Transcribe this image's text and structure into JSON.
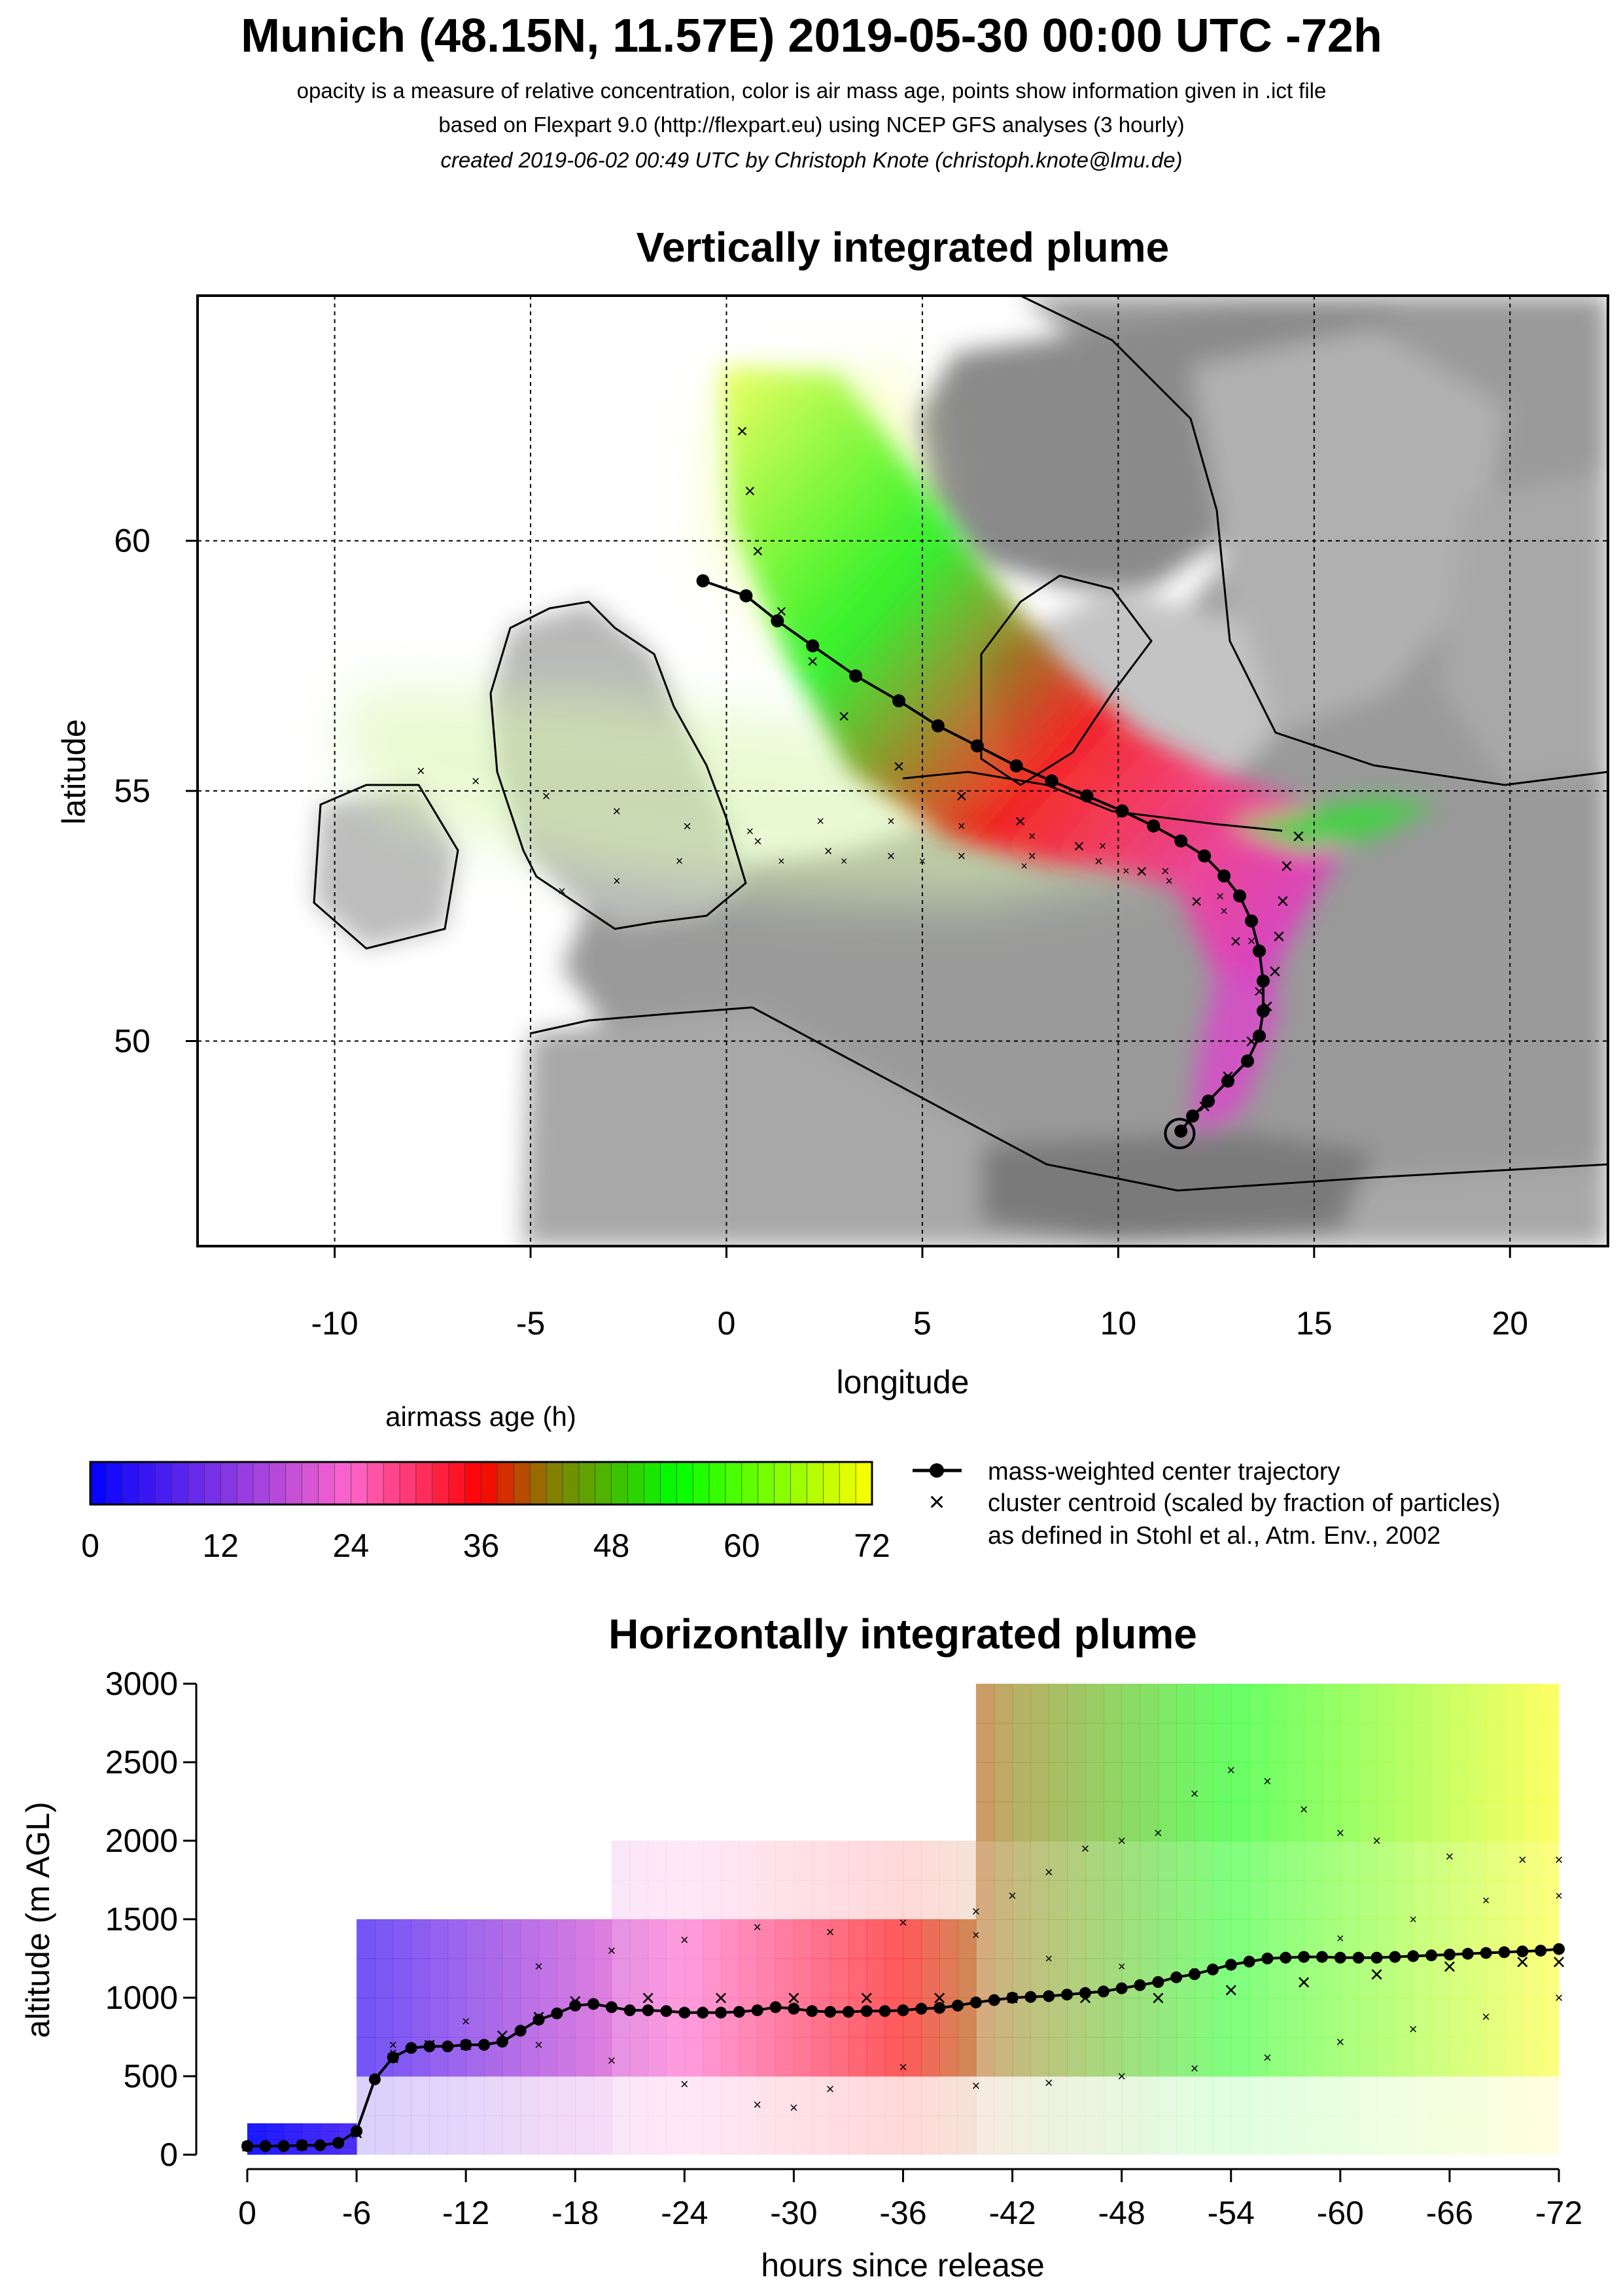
{
  "header": {
    "title": "Munich (48.15N, 11.57E) 2019-05-30 00:00 UTC -72h",
    "subtitle1": "opacity is a measure of relative concentration, color is air mass age, points show information given in .ict file",
    "subtitle2": "based on Flexpart 9.0 (http://flexpart.eu) using NCEP GFS analyses (3 hourly)",
    "subtitle3": "created 2019-06-02 00:49 UTC by Christoph Knote (christoph.knote@lmu.de)"
  },
  "map_panel": {
    "title": "Vertically integrated plume",
    "xlabel": "longitude",
    "ylabel": "latitude",
    "xticks": [
      "-10",
      "-5",
      "0",
      "5",
      "10",
      "15",
      "20"
    ],
    "yticks": [
      "60",
      "55",
      "50"
    ]
  },
  "legend": {
    "colorbar_title": "airmass age (h)",
    "colorbar_ticks": [
      "0",
      "12",
      "24",
      "36",
      "48",
      "60",
      "72"
    ],
    "line1": "mass-weighted center trajectory",
    "line2": "cluster centroid (scaled by fraction of particles)",
    "line3": "as defined in Stohl et al., Atm. Env., 2002"
  },
  "profile_panel": {
    "title": "Horizontally integrated plume",
    "xlabel": "hours since release",
    "ylabel": "altitude (m AGL)",
    "xticks": [
      "0",
      "-6",
      "-12",
      "-18",
      "-24",
      "-30",
      "-36",
      "-42",
      "-48",
      "-54",
      "-60",
      "-66",
      "-72"
    ],
    "yticks": [
      "0",
      "500",
      "1000",
      "1500",
      "2000",
      "2500",
      "3000"
    ]
  },
  "colors": {
    "age_ramp": [
      "#0000ff",
      "#ff66cc",
      "#ff0000",
      "#00ff00",
      "#ffff00"
    ],
    "map_background": "#9a9a9a",
    "trajectory": "#000000"
  },
  "chart_data": [
    {
      "type": "scatter",
      "title": "Vertically integrated plume",
      "xlabel": "longitude",
      "ylabel": "latitude",
      "xlim": [
        -13.5,
        22.5
      ],
      "ylim": [
        45.9,
        64.9
      ],
      "grid": true,
      "release_point": {
        "lon": 11.57,
        "lat": 48.15
      },
      "series": [
        {
          "name": "mass-weighted center trajectory",
          "points": [
            [
              11.6,
              48.2
            ],
            [
              11.9,
              48.5
            ],
            [
              12.3,
              48.8
            ],
            [
              12.8,
              49.2
            ],
            [
              13.3,
              49.6
            ],
            [
              13.6,
              50.1
            ],
            [
              13.7,
              50.6
            ],
            [
              13.7,
              51.2
            ],
            [
              13.6,
              51.8
            ],
            [
              13.4,
              52.4
            ],
            [
              13.1,
              52.9
            ],
            [
              12.7,
              53.3
            ],
            [
              12.2,
              53.7
            ],
            [
              11.6,
              54.0
            ],
            [
              10.9,
              54.3
            ],
            [
              10.1,
              54.6
            ],
            [
              9.2,
              54.9
            ],
            [
              8.3,
              55.2
            ],
            [
              7.4,
              55.5
            ],
            [
              6.4,
              55.9
            ],
            [
              5.4,
              56.3
            ],
            [
              4.4,
              56.8
            ],
            [
              3.3,
              57.3
            ],
            [
              2.2,
              57.9
            ],
            [
              1.3,
              58.4
            ],
            [
              0.5,
              58.9
            ],
            [
              -0.6,
              59.2
            ]
          ]
        },
        {
          "name": "cluster centroid (scaled by fraction of particles)",
          "clusters": [
            [
              [
                11.6,
                48.2
              ],
              [
                12.2,
                48.7
              ],
              [
                12.8,
                49.3
              ],
              [
                13.4,
                50.0
              ],
              [
                13.8,
                50.7
              ],
              [
                14.0,
                51.4
              ],
              [
                14.1,
                52.1
              ],
              [
                14.2,
                52.8
              ],
              [
                14.3,
                53.5
              ],
              [
                14.6,
                54.1
              ]
            ],
            [
              [
                13.6,
                51.0
              ],
              [
                13.0,
                52.0
              ],
              [
                12.0,
                52.8
              ],
              [
                10.6,
                53.4
              ],
              [
                9.0,
                53.9
              ],
              [
                7.5,
                54.4
              ],
              [
                6.0,
                54.9
              ],
              [
                4.4,
                55.5
              ],
              [
                3.0,
                56.5
              ],
              [
                2.2,
                57.6
              ],
              [
                1.4,
                58.6
              ],
              [
                0.8,
                59.8
              ],
              [
                0.6,
                61.0
              ],
              [
                0.4,
                62.2
              ]
            ],
            [
              [
                13.4,
                52.0
              ],
              [
                12.6,
                52.9
              ],
              [
                11.2,
                53.4
              ],
              [
                9.5,
                53.6
              ],
              [
                7.8,
                53.7
              ],
              [
                6.0,
                53.7
              ],
              [
                4.2,
                53.7
              ],
              [
                2.6,
                53.8
              ],
              [
                0.8,
                54.0
              ],
              [
                -1.0,
                54.3
              ],
              [
                -2.8,
                54.6
              ],
              [
                -4.6,
                54.9
              ],
              [
                -6.4,
                55.2
              ],
              [
                -7.8,
                55.4
              ]
            ],
            [
              [
                12.7,
                52.6
              ],
              [
                11.3,
                53.2
              ],
              [
                9.6,
                53.9
              ],
              [
                7.8,
                54.1
              ],
              [
                6.0,
                54.3
              ],
              [
                4.2,
                54.4
              ],
              [
                2.4,
                54.4
              ],
              [
                0.6,
                54.2
              ],
              [
                -1.2,
                53.6
              ],
              [
                -2.8,
                53.2
              ],
              [
                -4.2,
                53.0
              ]
            ],
            [
              [
                10.2,
                53.4
              ],
              [
                7.6,
                53.5
              ],
              [
                5.0,
                53.6
              ],
              [
                3.0,
                53.6
              ],
              [
                1.4,
                53.6
              ]
            ]
          ]
        }
      ]
    },
    {
      "type": "line",
      "title": "Horizontally integrated plume",
      "xlabel": "hours since release",
      "ylabel": "altitude (m AGL)",
      "xlim": [
        0,
        -72
      ],
      "ylim": [
        0,
        3000
      ],
      "grid": false,
      "series": [
        {
          "name": "mass-weighted center trajectory",
          "x": [
            0,
            -1,
            -2,
            -3,
            -4,
            -5,
            -6,
            -7,
            -8,
            -9,
            -10,
            -11,
            -12,
            -13,
            -14,
            -15,
            -16,
            -17,
            -18,
            -19,
            -20,
            -21,
            -22,
            -23,
            -24,
            -25,
            -26,
            -27,
            -28,
            -29,
            -30,
            -31,
            -32,
            -33,
            -34,
            -35,
            -36,
            -37,
            -38,
            -39,
            -40,
            -41,
            -42,
            -43,
            -44,
            -45,
            -46,
            -47,
            -48,
            -49,
            -50,
            -51,
            -52,
            -53,
            -54,
            -55,
            -56,
            -57,
            -58,
            -59,
            -60,
            -61,
            -62,
            -63,
            -64,
            -65,
            -66,
            -67,
            -68,
            -69,
            -70,
            -71,
            -72
          ],
          "y": [
            55,
            55,
            55,
            60,
            60,
            75,
            150,
            480,
            620,
            680,
            690,
            690,
            700,
            700,
            720,
            790,
            860,
            900,
            950,
            960,
            940,
            920,
            920,
            915,
            905,
            905,
            905,
            910,
            920,
            940,
            930,
            915,
            910,
            910,
            915,
            915,
            920,
            930,
            935,
            950,
            970,
            985,
            1000,
            1005,
            1010,
            1020,
            1030,
            1040,
            1060,
            1080,
            1100,
            1130,
            1150,
            1180,
            1210,
            1230,
            1250,
            1255,
            1260,
            1260,
            1255,
            1255,
            1255,
            1260,
            1265,
            1270,
            1275,
            1280,
            1285,
            1290,
            1295,
            1300,
            1310
          ]
        },
        {
          "name": "cluster centroid (scaled by fraction of particles)",
          "clusters": [
            [
              [
                0,
                55
              ],
              [
                -3,
                60
              ],
              [
                -6,
                140
              ],
              [
                -8,
                620
              ],
              [
                -10,
                700
              ],
              [
                -12,
                700
              ],
              [
                -14,
                760
              ],
              [
                -16,
                880
              ],
              [
                -18,
                980
              ],
              [
                -22,
                1000
              ],
              [
                -26,
                1000
              ],
              [
                -30,
                1000
              ],
              [
                -34,
                1000
              ],
              [
                -38,
                1000
              ],
              [
                -42,
                1000
              ],
              [
                -46,
                1000
              ],
              [
                -50,
                1000
              ],
              [
                -54,
                1050
              ],
              [
                -58,
                1100
              ],
              [
                -62,
                1150
              ],
              [
                -66,
                1200
              ],
              [
                -70,
                1230
              ],
              [
                -72,
                1230
              ]
            ],
            [
              [
                -8,
                700
              ],
              [
                -12,
                850
              ],
              [
                -16,
                1200
              ],
              [
                -20,
                1300
              ],
              [
                -24,
                1370
              ],
              [
                -28,
                1450
              ],
              [
                -32,
                1420
              ],
              [
                -36,
                1480
              ],
              [
                -40,
                1550
              ],
              [
                -42,
                1650
              ],
              [
                -44,
                1800
              ],
              [
                -46,
                1950
              ],
              [
                -48,
                2000
              ],
              [
                -50,
                2050
              ],
              [
                -52,
                2300
              ],
              [
                -54,
                2450
              ],
              [
                -56,
                2380
              ],
              [
                -58,
                2200
              ],
              [
                -60,
                2050
              ],
              [
                -62,
                2000
              ],
              [
                -66,
                1900
              ],
              [
                -70,
                1880
              ],
              [
                -72,
                1880
              ]
            ],
            [
              [
                -8,
                650
              ],
              [
                -12,
                700
              ],
              [
                -16,
                700
              ],
              [
                -20,
                600
              ],
              [
                -24,
                450
              ],
              [
                -28,
                320
              ],
              [
                -30,
                300
              ],
              [
                -32,
                420
              ],
              [
                -36,
                560
              ],
              [
                -40,
                440
              ],
              [
                -44,
                460
              ],
              [
                -48,
                500
              ],
              [
                -52,
                550
              ],
              [
                -56,
                620
              ],
              [
                -60,
                720
              ],
              [
                -64,
                800
              ],
              [
                -68,
                880
              ],
              [
                -72,
                1000
              ]
            ],
            [
              [
                -40,
                1400
              ],
              [
                -44,
                1250
              ],
              [
                -48,
                1200
              ],
              [
                -52,
                1170
              ],
              [
                -56,
                1250
              ],
              [
                -60,
                1380
              ],
              [
                -64,
                1500
              ],
              [
                -68,
                1620
              ],
              [
                -72,
                1650
              ]
            ]
          ]
        }
      ]
    }
  ]
}
